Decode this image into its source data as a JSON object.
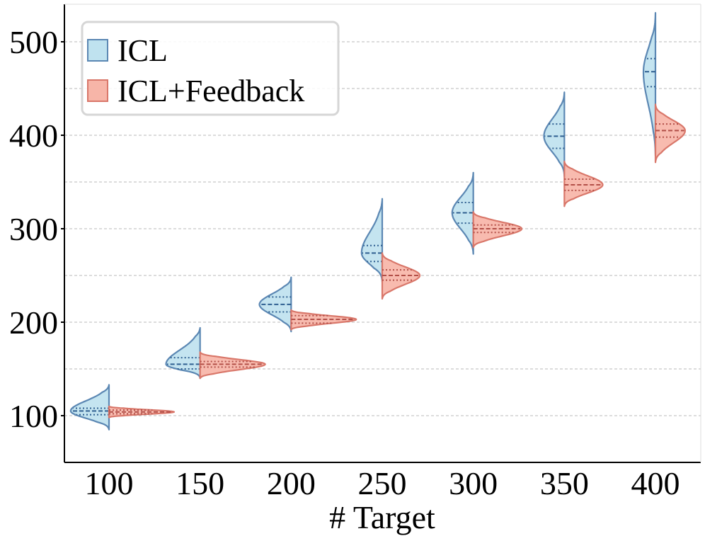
{
  "chart_data": {
    "type": "violin",
    "split": true,
    "xlabel": "# Target",
    "ylabel": "",
    "categories": [
      100,
      150,
      200,
      250,
      300,
      350,
      400
    ],
    "ylim": [
      50,
      540
    ],
    "yticks": [
      100,
      200,
      300,
      400,
      500
    ],
    "grid": true,
    "legend_position": "top-left",
    "series": [
      {
        "name": "ICL",
        "side": "left",
        "fill": "#bfe2ef",
        "stroke": "#5b87b3",
        "quartile_color": "#2f5f91",
        "distributions": [
          {
            "x": 100,
            "min": 85,
            "max": 133,
            "q1": 101,
            "median": 105,
            "q3": 108
          },
          {
            "x": 150,
            "min": 140,
            "max": 194,
            "q1": 150,
            "median": 155,
            "q3": 162
          },
          {
            "x": 200,
            "min": 190,
            "max": 248,
            "q1": 211,
            "median": 219,
            "q3": 227
          },
          {
            "x": 250,
            "min": 243,
            "max": 332,
            "q1": 265,
            "median": 274,
            "q3": 282
          },
          {
            "x": 300,
            "min": 273,
            "max": 360,
            "q1": 306,
            "median": 317,
            "q3": 328
          },
          {
            "x": 350,
            "min": 356,
            "max": 446,
            "q1": 386,
            "median": 399,
            "q3": 412
          },
          {
            "x": 400,
            "min": 378,
            "max": 531,
            "q1": 452,
            "median": 468,
            "q3": 482
          }
        ]
      },
      {
        "name": "ICL+Feedback",
        "side": "right",
        "fill": "#f7b5a8",
        "stroke": "#d9776a",
        "quartile_color": "#b24f48",
        "distributions": [
          {
            "x": 100,
            "min": 98,
            "max": 110,
            "q1": 102,
            "median": 104,
            "q3": 106
          },
          {
            "x": 150,
            "min": 140,
            "max": 168,
            "q1": 152,
            "median": 155,
            "q3": 158
          },
          {
            "x": 200,
            "min": 192,
            "max": 213,
            "q1": 199,
            "median": 203,
            "q3": 207
          },
          {
            "x": 250,
            "min": 225,
            "max": 274,
            "q1": 245,
            "median": 250,
            "q3": 256
          },
          {
            "x": 300,
            "min": 280,
            "max": 318,
            "q1": 296,
            "median": 300,
            "q3": 304
          },
          {
            "x": 350,
            "min": 324,
            "max": 372,
            "q1": 341,
            "median": 347,
            "q3": 353
          },
          {
            "x": 400,
            "min": 371,
            "max": 433,
            "q1": 398,
            "median": 405,
            "q3": 412
          }
        ]
      }
    ]
  }
}
